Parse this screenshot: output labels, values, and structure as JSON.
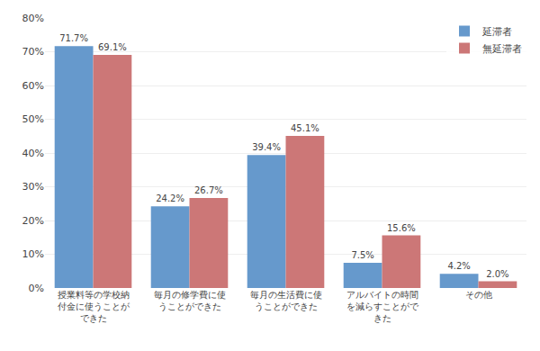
{
  "chart_data": {
    "type": "bar",
    "categories": [
      "授業料等の学校納\n付金に使うことが\nできた",
      "毎月の修学費に使\nうことができた",
      "毎月の生活費に使\nうことができた",
      "アルバイトの時間\nを減らすことがで\nきた",
      "その他"
    ],
    "series": [
      {
        "name": "延滞者",
        "color": "#6699cc",
        "values": [
          71.7,
          24.2,
          39.4,
          7.5,
          4.2
        ],
        "value_labels": [
          "71.7%",
          "24.2%",
          "39.4%",
          "7.5%",
          "4.2%"
        ]
      },
      {
        "name": "無延滞者",
        "color": "#cc7777",
        "values": [
          69.1,
          26.7,
          45.1,
          15.6,
          2.0
        ],
        "value_labels": [
          "69.1%",
          "26.7%",
          "45.1%",
          "15.6%",
          "2.0%"
        ]
      }
    ],
    "ylim": [
      0,
      80
    ],
    "yticks": [
      {
        "value": 0,
        "label": "0%"
      },
      {
        "value": 10,
        "label": "10%"
      },
      {
        "value": 20,
        "label": "20%"
      },
      {
        "value": 30,
        "label": "30%"
      },
      {
        "value": 40,
        "label": "40%"
      },
      {
        "value": 50,
        "label": "50%"
      },
      {
        "value": 60,
        "label": "60%"
      },
      {
        "value": 70,
        "label": "70%"
      },
      {
        "value": 80,
        "label": "80%"
      }
    ],
    "grid": true,
    "legend": "upper right",
    "data_labels": true
  }
}
